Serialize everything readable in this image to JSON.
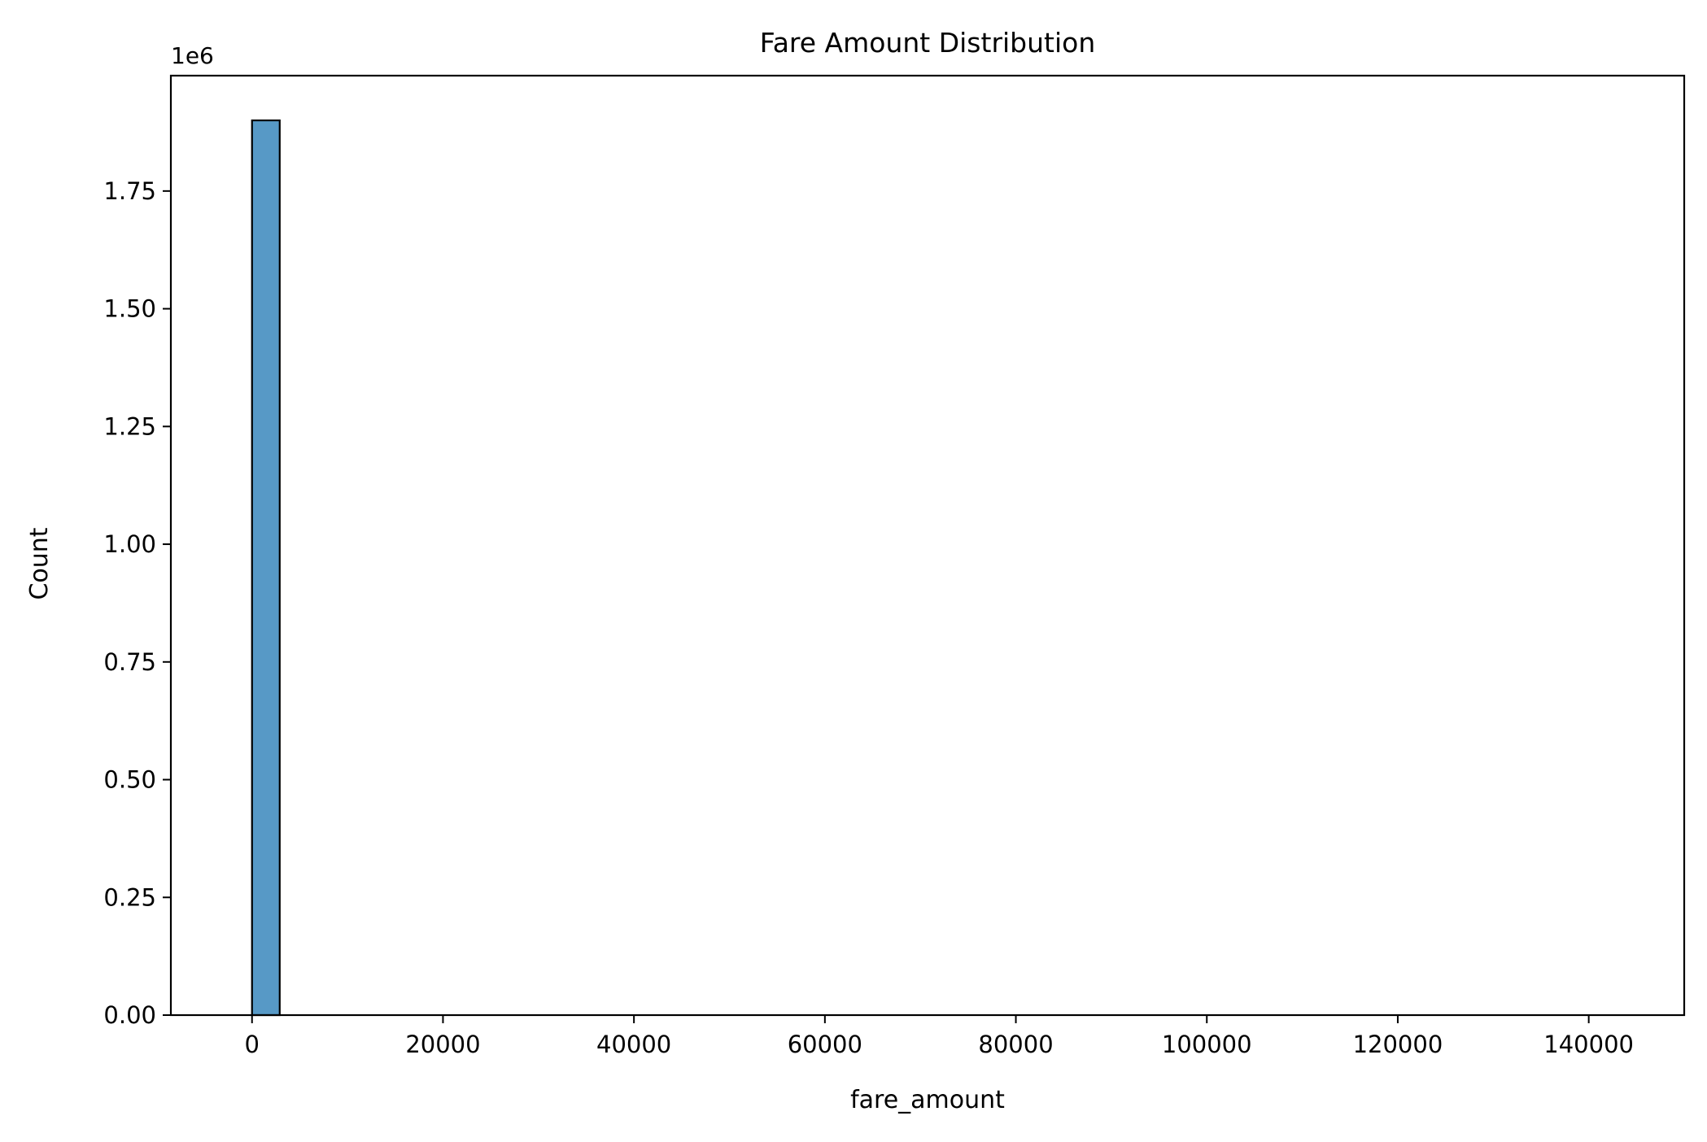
{
  "chart_data": {
    "type": "bar",
    "title": "Fare Amount Distribution",
    "xlabel": "fare_amount",
    "ylabel": "Count",
    "y_offset_label": "1e6",
    "xlim": [
      -8500,
      150000
    ],
    "ylim": [
      0,
      1.995
    ],
    "x_ticks": [
      0,
      20000,
      40000,
      60000,
      80000,
      100000,
      120000,
      140000
    ],
    "x_tick_labels": [
      "0",
      "20000",
      "40000",
      "60000",
      "80000",
      "100000",
      "120000",
      "140000"
    ],
    "y_ticks": [
      0,
      0.25,
      0.5,
      0.75,
      1.0,
      1.25,
      1.5,
      1.75
    ],
    "y_tick_labels": [
      "0.00",
      "0.25",
      "0.50",
      "0.75",
      "1.00",
      "1.25",
      "1.50",
      "1.75"
    ],
    "y_unit_multiplier": 1000000,
    "bins": [
      {
        "x0": 0,
        "x1": 2900,
        "count": 1.9
      }
    ],
    "bar_color": "#5799c6",
    "edge_color": "#000000",
    "grid": false
  }
}
